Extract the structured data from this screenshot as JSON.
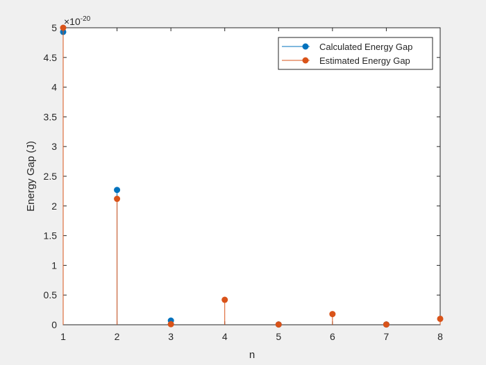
{
  "chart_data": {
    "type": "stem",
    "title": "",
    "xlabel": "n",
    "ylabel": "Energy Gap (J)",
    "y_exponent_label": "×10",
    "y_exponent_power": "-20",
    "xlim": [
      1,
      8
    ],
    "ylim": [
      0,
      5
    ],
    "x_ticks": [
      1,
      2,
      3,
      4,
      5,
      6,
      7,
      8
    ],
    "x_tick_labels": [
      "1",
      "2",
      "3",
      "4",
      "5",
      "6",
      "7",
      "8"
    ],
    "y_ticks": [
      0,
      0.5,
      1,
      1.5,
      2,
      2.5,
      3,
      3.5,
      4,
      4.5,
      5
    ],
    "y_tick_labels": [
      "0",
      "0.5",
      "1",
      "1.5",
      "2",
      "2.5",
      "3",
      "3.5",
      "4",
      "4.5",
      "5"
    ],
    "grid": false,
    "legend_position": "top-right",
    "series": [
      {
        "name": "Calculated Energy Gap",
        "color": "#0072BD",
        "x": [
          1,
          2,
          3,
          5,
          7
        ],
        "values": [
          4.93,
          2.27,
          0.07,
          0.005,
          0.005
        ]
      },
      {
        "name": "Estimated Energy Gap",
        "color": "#D95319",
        "x": [
          1,
          2,
          3,
          4,
          5,
          6,
          7,
          8
        ],
        "values": [
          5.0,
          2.12,
          0.01,
          0.42,
          0.005,
          0.18,
          0.005,
          0.1
        ]
      }
    ]
  }
}
